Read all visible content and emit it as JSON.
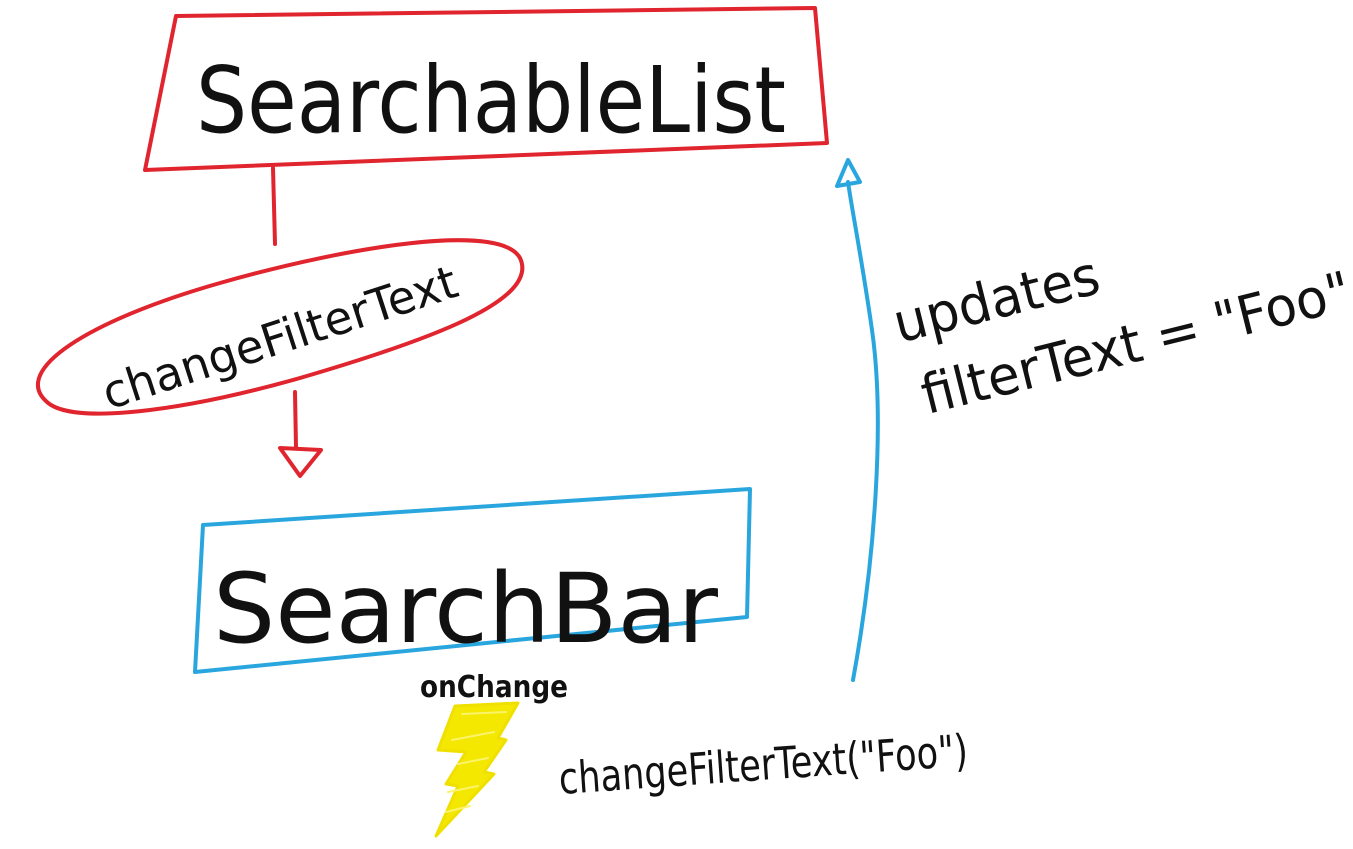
{
  "colors": {
    "parent": "#e0252e",
    "child": "#2aa6de",
    "event": "#f4e800",
    "ink": "#111111"
  },
  "nodes": {
    "parent": {
      "label": "SearchableList"
    },
    "child": {
      "label": "SearchBar"
    }
  },
  "edges": {
    "prop_callback": {
      "label": "changeFilterText"
    },
    "callback_call": {
      "label": "changeFilterText(\"Foo\")"
    },
    "state_update": {
      "line1": "updates",
      "line2": "filterText = \"Foo\""
    }
  },
  "event": {
    "label": "onChange",
    "icon": "lightning-bolt-icon"
  }
}
